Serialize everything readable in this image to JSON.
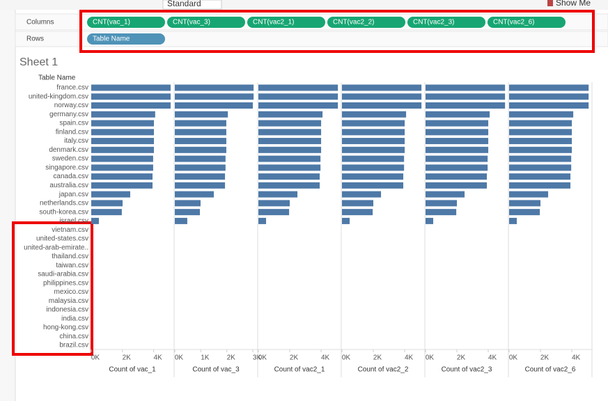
{
  "toolbar": {
    "fit": "Standard",
    "show_me": "Show Me"
  },
  "shelves": {
    "columns_label": "Columns",
    "rows_label": "Rows",
    "columns": [
      "CNT(vac_1)",
      "CNT(vac_3)",
      "CNT(vac2_1)",
      "CNT(vac2_2)",
      "CNT(vac2_3)",
      "CNT(vac2_6)"
    ],
    "rows": [
      "Table Name"
    ]
  },
  "sheet_title": "Sheet 1",
  "row_header": "Table Name",
  "table_names": [
    "france.csv",
    "united-kingdom.csv",
    "norway.csv",
    "germany.csv",
    "spain.csv",
    "finland.csv",
    "italy.csv",
    "denmark.csv",
    "sweden.csv",
    "singapore.csv",
    "canada.csv",
    "australia.csv",
    "japan.csv",
    "netherlands.csv",
    "south-korea.csv",
    "israel.csv",
    "vietnam.csv",
    "united-states.csv",
    "united-arab-emirate..",
    "thailand.csv",
    "taiwan.csv",
    "saudi-arabia.csv",
    "philippines.csv",
    "mexico.csv",
    "malaysia.csv",
    "indonesia.csv",
    "india.csv",
    "hong-kong.csv",
    "china.csv",
    "brazil.csv"
  ],
  "chart_data": [
    {
      "type": "bar",
      "x_label": "Count of vac_1",
      "color": "#4e79a7",
      "xlim": [
        0,
        5270
      ],
      "xticks": [
        {
          "value": 0,
          "label": "0K"
        },
        {
          "value": 2000,
          "label": "2K"
        },
        {
          "value": 4000,
          "label": "4K"
        }
      ],
      "values": [
        5090,
        5090,
        5090,
        4100,
        4020,
        4020,
        4020,
        4020,
        3970,
        3970,
        3930,
        3930,
        2500,
        2010,
        1960,
        490,
        null,
        null,
        null,
        null,
        null,
        null,
        null,
        null,
        null,
        null,
        null,
        null,
        null,
        null
      ]
    },
    {
      "type": "bar",
      "x_label": "Count of vac_3",
      "color": "#4e79a7",
      "xlim": [
        0,
        3160
      ],
      "xticks": [
        {
          "value": 0,
          "label": "0K"
        },
        {
          "value": 1000,
          "label": "1K"
        },
        {
          "value": 2000,
          "label": "2K"
        },
        {
          "value": 3000,
          "label": "3K"
        }
      ],
      "values": [
        3030,
        3030,
        3000,
        2040,
        1980,
        1980,
        1980,
        1980,
        1950,
        1950,
        1930,
        1930,
        1500,
        990,
        965,
        480,
        null,
        null,
        null,
        null,
        null,
        null,
        null,
        null,
        null,
        null,
        null,
        null,
        null,
        null
      ]
    },
    {
      "type": "bar",
      "x_label": "Count of vac2_1",
      "color": "#4e79a7",
      "xlim": [
        0,
        5240
      ],
      "xticks": [
        {
          "value": 0,
          "label": "0K"
        },
        {
          "value": 2000,
          "label": "2K"
        },
        {
          "value": 4000,
          "label": "4K"
        }
      ],
      "values": [
        5070,
        5070,
        5070,
        4090,
        4000,
        4000,
        4000,
        4000,
        3960,
        3960,
        3910,
        3910,
        2490,
        2000,
        1960,
        490,
        null,
        null,
        null,
        null,
        null,
        null,
        null,
        null,
        null,
        null,
        null,
        null,
        null,
        null
      ]
    },
    {
      "type": "bar",
      "x_label": "Count of vac2_2",
      "color": "#4e79a7",
      "xlim": [
        0,
        5240
      ],
      "xticks": [
        {
          "value": 0,
          "label": "0K"
        },
        {
          "value": 2000,
          "label": "2K"
        },
        {
          "value": 4000,
          "label": "4K"
        }
      ],
      "values": [
        5070,
        5070,
        5070,
        4090,
        4000,
        4000,
        4000,
        4000,
        3960,
        3960,
        3910,
        3910,
        2490,
        2000,
        1960,
        490,
        null,
        null,
        null,
        null,
        null,
        null,
        null,
        null,
        null,
        null,
        null,
        null,
        null,
        null
      ]
    },
    {
      "type": "bar",
      "x_label": "Count of vac2_3",
      "color": "#4e79a7",
      "xlim": [
        0,
        5240
      ],
      "xticks": [
        {
          "value": 0,
          "label": "0K"
        },
        {
          "value": 2000,
          "label": "2K"
        },
        {
          "value": 4000,
          "label": "4K"
        }
      ],
      "values": [
        5070,
        5070,
        5070,
        4090,
        4000,
        4000,
        4000,
        4000,
        3960,
        3960,
        3910,
        3910,
        2490,
        2000,
        1960,
        490,
        null,
        null,
        null,
        null,
        null,
        null,
        null,
        null,
        null,
        null,
        null,
        null,
        null,
        null
      ]
    },
    {
      "type": "bar",
      "x_label": "Count of vac2_6",
      "color": "#4e79a7",
      "xlim": [
        0,
        5240
      ],
      "xticks": [
        {
          "value": 0,
          "label": "0K"
        },
        {
          "value": 2000,
          "label": "2K"
        },
        {
          "value": 4000,
          "label": "4K"
        }
      ],
      "values": [
        5070,
        5070,
        5070,
        4090,
        4000,
        4000,
        4000,
        4000,
        3960,
        3960,
        3910,
        3910,
        2490,
        2000,
        1960,
        490,
        null,
        null,
        null,
        null,
        null,
        null,
        null,
        null,
        null,
        null,
        null,
        null,
        null,
        null
      ]
    }
  ]
}
